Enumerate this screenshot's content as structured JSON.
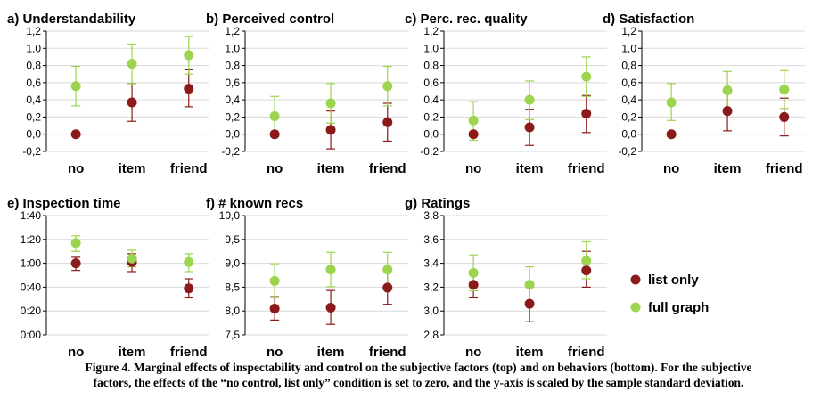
{
  "colors": {
    "list_only": "#8b1a1a",
    "full_graph": "#9cd44e",
    "grid": "#d9d9d9",
    "axis": "#000000"
  },
  "legend": {
    "list_only": "list only",
    "full_graph": "full graph"
  },
  "caption": {
    "line1": "Figure 4. Marginal effects of inspectability and control on the subjective factors (top) and on behaviors (bottom). For the subjective",
    "line2": "factors, the effects of the “no control, list only” condition is set to zero, and the y-axis is scaled by the sample standard deviation."
  },
  "chart_data": [
    {
      "type": "scatter",
      "title": "a) Understandability",
      "categories": [
        "no",
        "item",
        "friend"
      ],
      "ylim": [
        -0.2,
        1.2
      ],
      "yticks": [
        -0.2,
        0,
        0.2,
        0.4,
        0.6,
        0.8,
        1.0,
        1.2
      ],
      "ytick_labels": [
        "-0,2",
        "0,0",
        "0,2",
        "0,4",
        "0,6",
        "0,8",
        "1,0",
        "1,2"
      ],
      "grid": true,
      "series": [
        {
          "name": "list only",
          "values": [
            0.0,
            0.37,
            0.53
          ],
          "err_low": [
            0.0,
            0.15,
            0.32
          ],
          "err_high": [
            0.0,
            0.59,
            0.75
          ]
        },
        {
          "name": "full graph",
          "values": [
            0.56,
            0.82,
            0.92
          ],
          "err_low": [
            0.33,
            0.59,
            0.7
          ],
          "err_high": [
            0.79,
            1.05,
            1.14
          ]
        }
      ]
    },
    {
      "type": "scatter",
      "title": "b) Perceived control",
      "categories": [
        "no",
        "item",
        "friend"
      ],
      "ylim": [
        -0.2,
        1.2
      ],
      "yticks": [
        -0.2,
        0,
        0.2,
        0.4,
        0.6,
        0.8,
        1.0,
        1.2
      ],
      "ytick_labels": [
        "-0,2",
        "0,0",
        "0,2",
        "0,4",
        "0,6",
        "0,8",
        "1,0",
        "1,2"
      ],
      "grid": true,
      "series": [
        {
          "name": "list only",
          "values": [
            0.0,
            0.05,
            0.14
          ],
          "err_low": [
            0.0,
            -0.17,
            -0.08
          ],
          "err_high": [
            0.0,
            0.27,
            0.36
          ]
        },
        {
          "name": "full graph",
          "values": [
            0.21,
            0.36,
            0.56
          ],
          "err_low": [
            -0.03,
            0.13,
            0.33
          ],
          "err_high": [
            0.44,
            0.59,
            0.79
          ]
        }
      ]
    },
    {
      "type": "scatter",
      "title": "c) Perc. rec. quality",
      "categories": [
        "no",
        "item",
        "friend"
      ],
      "ylim": [
        -0.2,
        1.2
      ],
      "yticks": [
        -0.2,
        0,
        0.2,
        0.4,
        0.6,
        0.8,
        1.0,
        1.2
      ],
      "ytick_labels": [
        "-0,2",
        "0,0",
        "0,2",
        "0,4",
        "0,6",
        "0,8",
        "1,0",
        "1,2"
      ],
      "grid": true,
      "series": [
        {
          "name": "list only",
          "values": [
            0.0,
            0.08,
            0.24
          ],
          "err_low": [
            0.0,
            -0.13,
            0.02
          ],
          "err_high": [
            0.0,
            0.29,
            0.45
          ]
        },
        {
          "name": "full graph",
          "values": [
            0.16,
            0.4,
            0.67
          ],
          "err_low": [
            -0.07,
            0.17,
            0.44
          ],
          "err_high": [
            0.38,
            0.62,
            0.9
          ]
        }
      ]
    },
    {
      "type": "scatter",
      "title": "d) Satisfaction",
      "categories": [
        "no",
        "item",
        "friend"
      ],
      "ylim": [
        -0.2,
        1.2
      ],
      "yticks": [
        -0.2,
        0,
        0.2,
        0.4,
        0.6,
        0.8,
        1.0,
        1.2
      ],
      "ytick_labels": [
        "-0,2",
        "0,0",
        "0,2",
        "0,4",
        "0,6",
        "0,8",
        "1,0",
        "1,2"
      ],
      "grid": true,
      "series": [
        {
          "name": "list only",
          "values": [
            0.0,
            0.27,
            0.2
          ],
          "err_low": [
            0.0,
            0.04,
            -0.02
          ],
          "err_high": [
            0.0,
            0.5,
            0.42
          ]
        },
        {
          "name": "full graph",
          "values": [
            0.37,
            0.51,
            0.52
          ],
          "err_low": [
            0.16,
            0.29,
            0.3
          ],
          "err_high": [
            0.59,
            0.73,
            0.74
          ]
        }
      ]
    },
    {
      "type": "scatter",
      "title": "e) Inspection time",
      "categories": [
        "no",
        "item",
        "friend"
      ],
      "ylim": [
        0,
        100
      ],
      "yticks": [
        0,
        20,
        40,
        60,
        80,
        100
      ],
      "ytick_labels": [
        "0:00",
        "0:20",
        "0:40",
        "1:00",
        "1:20",
        "1:40"
      ],
      "grid": true,
      "series": [
        {
          "name": "list only",
          "values": [
            60,
            61,
            39
          ],
          "err_low": [
            54,
            53,
            31
          ],
          "err_high": [
            65,
            68,
            47
          ]
        },
        {
          "name": "full graph",
          "values": [
            77,
            64,
            61
          ],
          "err_low": [
            70,
            57,
            53
          ],
          "err_high": [
            83,
            71,
            68
          ]
        }
      ]
    },
    {
      "type": "scatter",
      "title": "f) # known recs",
      "categories": [
        "no",
        "item",
        "friend"
      ],
      "ylim": [
        7.5,
        10.0
      ],
      "yticks": [
        7.5,
        8.0,
        8.5,
        9.0,
        9.5,
        10.0
      ],
      "ytick_labels": [
        "7,5",
        "8,0",
        "8,5",
        "9,0",
        "9,5",
        "10,0"
      ],
      "grid": true,
      "series": [
        {
          "name": "list only",
          "values": [
            8.05,
            8.07,
            8.49
          ],
          "err_low": [
            7.81,
            7.72,
            8.14
          ],
          "err_high": [
            8.3,
            8.43,
            8.85
          ]
        },
        {
          "name": "full graph",
          "values": [
            8.63,
            8.87,
            8.87
          ],
          "err_low": [
            8.28,
            8.51,
            8.51
          ],
          "err_high": [
            8.99,
            9.23,
            9.23
          ]
        }
      ]
    },
    {
      "type": "scatter",
      "title": "g) Ratings",
      "categories": [
        "no",
        "item",
        "friend"
      ],
      "ylim": [
        2.8,
        3.8
      ],
      "yticks": [
        2.8,
        3.0,
        3.2,
        3.4,
        3.6,
        3.8
      ],
      "ytick_labels": [
        "2,8",
        "3,0",
        "3,2",
        "3,4",
        "3,6",
        "3,8"
      ],
      "grid": true,
      "series": [
        {
          "name": "list only",
          "values": [
            3.22,
            3.06,
            3.34
          ],
          "err_low": [
            3.11,
            2.91,
            3.2
          ],
          "err_high": [
            3.31,
            3.21,
            3.5
          ]
        },
        {
          "name": "full graph",
          "values": [
            3.32,
            3.22,
            3.42
          ],
          "err_low": [
            3.17,
            3.07,
            3.27
          ],
          "err_high": [
            3.47,
            3.37,
            3.58
          ]
        }
      ]
    }
  ]
}
